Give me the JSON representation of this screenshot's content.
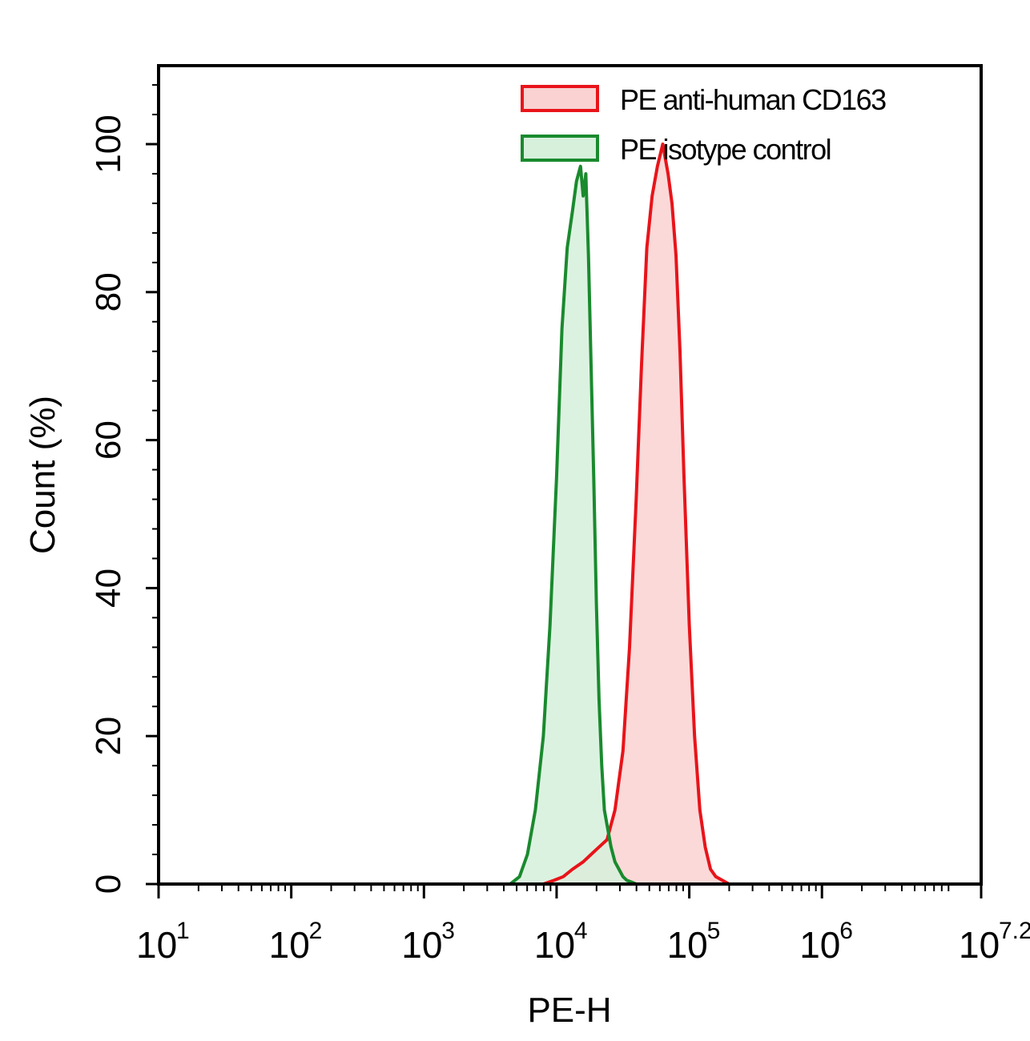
{
  "chart_data": {
    "type": "area",
    "xlabel": "PE-H",
    "ylabel": "Count (%)",
    "x_scale": "log10",
    "xlim_exponent": [
      1,
      7.2
    ],
    "ylim": [
      0,
      100
    ],
    "grid": false,
    "legend_position": "top-right",
    "x_tick_labels": [
      {
        "base": "10",
        "exp": "1",
        "value": 1
      },
      {
        "base": "10",
        "exp": "2",
        "value": 2
      },
      {
        "base": "10",
        "exp": "3",
        "value": 3
      },
      {
        "base": "10",
        "exp": "4",
        "value": 4
      },
      {
        "base": "10",
        "exp": "5",
        "value": 5
      },
      {
        "base": "10",
        "exp": "6",
        "value": 6
      },
      {
        "base": "10",
        "exp": "7.2",
        "value": 7.2
      }
    ],
    "y_ticks": [
      0,
      20,
      40,
      60,
      80,
      100
    ],
    "series": [
      {
        "name": "PE isotype control",
        "color": "#1a8a2e",
        "fill": "#d6f0dc",
        "x_log10": [
          3.65,
          3.72,
          3.78,
          3.84,
          3.9,
          3.95,
          4.0,
          4.04,
          4.08,
          4.12,
          4.15,
          4.18,
          4.2,
          4.22,
          4.24,
          4.26,
          4.28,
          4.3,
          4.32,
          4.34,
          4.36,
          4.38,
          4.41,
          4.44,
          4.47,
          4.5,
          4.53,
          4.56,
          4.6,
          4.65,
          4.7
        ],
        "values": [
          0,
          1,
          4,
          10,
          20,
          35,
          55,
          75,
          86,
          91,
          95,
          97,
          93,
          96,
          85,
          70,
          55,
          38,
          25,
          16,
          10,
          8,
          5,
          3,
          2,
          1,
          0.5,
          0.3,
          0,
          0,
          0
        ]
      },
      {
        "name": "PE anti-human CD163",
        "color": "#e8141a",
        "fill": "#fad2d2",
        "x_log10": [
          3.9,
          3.98,
          4.05,
          4.12,
          4.2,
          4.26,
          4.32,
          4.38,
          4.44,
          4.5,
          4.55,
          4.6,
          4.64,
          4.68,
          4.72,
          4.76,
          4.8,
          4.84,
          4.87,
          4.9,
          4.93,
          4.96,
          5.0,
          5.04,
          5.08,
          5.12,
          5.16,
          5.2,
          5.25,
          5.3,
          5.36,
          5.42
        ],
        "values": [
          0,
          0.5,
          1,
          2,
          3,
          4,
          5,
          6,
          10,
          18,
          32,
          52,
          70,
          86,
          93,
          97,
          100,
          96,
          92,
          85,
          72,
          55,
          35,
          20,
          10,
          5,
          2,
          1,
          0.5,
          0,
          0,
          0
        ]
      }
    ]
  }
}
